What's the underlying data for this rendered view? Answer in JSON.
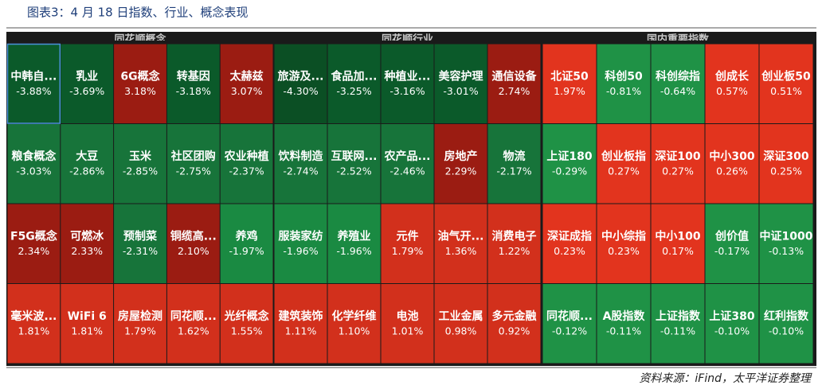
{
  "title": "图表3：4 月 18 日指数、行业、概念表现",
  "source": "资料来源：iFind，太平洋证券整理",
  "panels": [
    {
      "header": "同花顺概念",
      "tiles": [
        [
          {
            "label": "中韩自...",
            "value": "-3.88%",
            "color": "#0b5a2a"
          },
          {
            "label": "乳业",
            "value": "-3.69%",
            "color": "#0b5a2a"
          },
          {
            "label": "6G概念",
            "value": "3.18%",
            "color": "#9b1c12"
          },
          {
            "label": "转基因",
            "value": "-3.18%",
            "color": "#0b5a2a"
          },
          {
            "label": "太赫兹",
            "value": "3.07%",
            "color": "#9b1c12"
          }
        ],
        [
          {
            "label": "粮食概念",
            "value": "-3.03%",
            "color": "#17743a"
          },
          {
            "label": "大豆",
            "value": "-2.86%",
            "color": "#17743a"
          },
          {
            "label": "玉米",
            "value": "-2.85%",
            "color": "#17743a"
          },
          {
            "label": "社区团购",
            "value": "-2.75%",
            "color": "#17743a"
          },
          {
            "label": "农业种植",
            "value": "-2.37%",
            "color": "#17743a"
          }
        ],
        [
          {
            "label": "F5G概念",
            "value": "2.34%",
            "color": "#9b1c12"
          },
          {
            "label": "可燃冰",
            "value": "2.33%",
            "color": "#9b1c12"
          },
          {
            "label": "预制菜",
            "value": "-2.31%",
            "color": "#17743a"
          },
          {
            "label": "铜缆高...",
            "value": "2.10%",
            "color": "#9b1c12"
          },
          {
            "label": "养鸡",
            "value": "-1.97%",
            "color": "#1a8a42"
          }
        ],
        [
          {
            "label": "毫米波...",
            "value": "1.81%",
            "color": "#d2301c"
          },
          {
            "label": "WiFi 6",
            "value": "1.81%",
            "color": "#d2301c"
          },
          {
            "label": "房屋检测",
            "value": "1.79%",
            "color": "#d2301c"
          },
          {
            "label": "同花顺...",
            "value": "1.62%",
            "color": "#d2301c"
          },
          {
            "label": "光纤概念",
            "value": "1.55%",
            "color": "#d2301c"
          }
        ]
      ]
    },
    {
      "header": "同花顺行业",
      "tiles": [
        [
          {
            "label": "旅游及...",
            "value": "-4.30%",
            "color": "#0b4f24"
          },
          {
            "label": "食品加...",
            "value": "-3.25%",
            "color": "#0b5a2a"
          },
          {
            "label": "种植业...",
            "value": "-3.16%",
            "color": "#0b5a2a"
          },
          {
            "label": "美容护理",
            "value": "-3.01%",
            "color": "#0b5a2a"
          },
          {
            "label": "通信设备",
            "value": "2.74%",
            "color": "#9b1c12"
          }
        ],
        [
          {
            "label": "饮料制造",
            "value": "-2.74%",
            "color": "#17743a"
          },
          {
            "label": "互联网...",
            "value": "-2.52%",
            "color": "#17743a"
          },
          {
            "label": "农产品...",
            "value": "-2.46%",
            "color": "#17743a"
          },
          {
            "label": "房地产",
            "value": "2.29%",
            "color": "#9b1c12"
          },
          {
            "label": "物流",
            "value": "-2.17%",
            "color": "#17743a"
          }
        ],
        [
          {
            "label": "服装家纺",
            "value": "-1.96%",
            "color": "#1a8a42"
          },
          {
            "label": "养殖业",
            "value": "-1.96%",
            "color": "#1a8a42"
          },
          {
            "label": "元件",
            "value": "1.79%",
            "color": "#d2301c"
          },
          {
            "label": "油气开...",
            "value": "1.36%",
            "color": "#d2301c"
          },
          {
            "label": "消费电子",
            "value": "1.22%",
            "color": "#d2301c"
          }
        ],
        [
          {
            "label": "建筑装饰",
            "value": "1.11%",
            "color": "#d2301c"
          },
          {
            "label": "化学纤维",
            "value": "1.10%",
            "color": "#d2301c"
          },
          {
            "label": "电池",
            "value": "1.01%",
            "color": "#d2301c"
          },
          {
            "label": "工业金属",
            "value": "0.98%",
            "color": "#d2301c"
          },
          {
            "label": "多元金融",
            "value": "0.92%",
            "color": "#d2301c"
          }
        ]
      ]
    },
    {
      "header": "国内重要指数",
      "tiles": [
        [
          {
            "label": "北证50",
            "value": "1.97%",
            "color": "#e2341e"
          },
          {
            "label": "科创50",
            "value": "-0.81%",
            "color": "#1f9246"
          },
          {
            "label": "科创综指",
            "value": "-0.64%",
            "color": "#1f9246"
          },
          {
            "label": "创成长",
            "value": "0.57%",
            "color": "#e2341e"
          },
          {
            "label": "创业板50",
            "value": "0.51%",
            "color": "#e2341e"
          }
        ],
        [
          {
            "label": "上证180",
            "value": "-0.29%",
            "color": "#1f9246"
          },
          {
            "label": "创业板指",
            "value": "0.27%",
            "color": "#e2341e"
          },
          {
            "label": "深证100",
            "value": "0.27%",
            "color": "#e2341e"
          },
          {
            "label": "中小300",
            "value": "0.26%",
            "color": "#e2341e"
          },
          {
            "label": "深证300",
            "value": "0.25%",
            "color": "#e2341e"
          }
        ],
        [
          {
            "label": "深证成指",
            "value": "0.23%",
            "color": "#e2341e"
          },
          {
            "label": "中小综指",
            "value": "0.23%",
            "color": "#e2341e"
          },
          {
            "label": "中小100",
            "value": "0.17%",
            "color": "#e2341e"
          },
          {
            "label": "创价值",
            "value": "-0.17%",
            "color": "#1f9246"
          },
          {
            "label": "中证1000",
            "value": "-0.13%",
            "color": "#1f9246"
          }
        ],
        [
          {
            "label": "同花顺...",
            "value": "-0.12%",
            "color": "#1f9246"
          },
          {
            "label": "A股指数",
            "value": "-0.11%",
            "color": "#1f9246"
          },
          {
            "label": "上证指数",
            "value": "-0.11%",
            "color": "#1f9246"
          },
          {
            "label": "上证380",
            "value": "-0.10%",
            "color": "#1f9246"
          },
          {
            "label": "红利指数",
            "value": "-0.10%",
            "color": "#1f9246"
          }
        ]
      ]
    }
  ]
}
